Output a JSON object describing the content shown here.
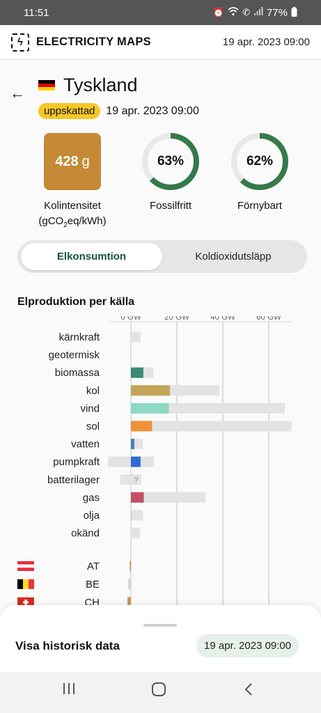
{
  "status_bar": {
    "time": "11:51",
    "battery": "77%",
    "icons": [
      "alarm-icon",
      "wifi-icon",
      "call-icon",
      "signal-icon",
      "battery-icon"
    ]
  },
  "header": {
    "logo_icon": "lightning-icon",
    "brand": "ELECTRICITY MAPS",
    "date": "19 apr. 2023 09:00"
  },
  "country": {
    "name": "Tyskland",
    "flag": "germany-flag",
    "badge": "uppskattad",
    "date": "19 apr. 2023 09:00",
    "badge_color": "#f5c829"
  },
  "metrics": {
    "intensity_value": "428",
    "intensity_unit": "g",
    "intensity_color": "#c48a36",
    "intensity_label_1": "Kolintensitet",
    "intensity_label_2": "(gCO",
    "intensity_label_sub": "2",
    "intensity_label_3": "eq/kWh)",
    "fossil_free_value": "63%",
    "fossil_free_fraction": 0.63,
    "fossil_free_label": "Fossilfritt",
    "renewable_value": "62%",
    "renewable_fraction": 0.62,
    "renewable_label": "Förnybart",
    "ring_color": "#357a4a"
  },
  "tabs": {
    "active": "Elkonsumtion",
    "inactive": "Koldioxidutsläpp"
  },
  "section_title": "Elproduktion per källa",
  "chart_data": {
    "type": "bar",
    "title": "Elproduktion per källa",
    "xlabel": "",
    "ylabel": "",
    "x_ticks": [
      "0 GW",
      "20 GW",
      "40 GW",
      "60 GW"
    ],
    "x_tick_values": [
      0,
      20,
      40,
      60
    ],
    "xlim": [
      -10,
      70
    ],
    "grid": true,
    "categories": [
      "kärnkraft",
      "geotermisk",
      "biomassa",
      "kol",
      "vind",
      "sol",
      "vatten",
      "pumpkraft",
      "batterilager",
      "gas",
      "olja",
      "okänd"
    ],
    "series": [
      {
        "values": [
          0,
          0,
          5.4,
          17,
          16.5,
          9.2,
          1.5,
          4.2,
          0,
          5.6,
          0.3,
          0
        ],
        "colors": [
          "#cfcfcf",
          "#cfcfcf",
          "#3b8a73",
          "#c4a55a",
          "#8ed9c3",
          "#f0913a",
          "#4d7fb8",
          "#2f6bd4",
          "#cfcfcf",
          "#c25066",
          "#cfcfcf",
          "#cfcfcf"
        ]
      },
      {
        "values": [
          4.2,
          0,
          9.8,
          38.5,
          67,
          70,
          5.2,
          10,
          4.5,
          32.5,
          5.2,
          4
        ],
        "range_min": [
          0,
          0,
          0,
          0,
          0,
          0,
          0,
          -10,
          -4.6,
          0,
          0,
          0
        ]
      }
    ],
    "unknown_marker": "?",
    "exchanges": [
      {
        "code": "AT",
        "flag": "austria-flag",
        "value": -0.5,
        "color": "#c49a52"
      },
      {
        "code": "BE",
        "flag": "belgium-flag",
        "value": -1.2,
        "color": "#d5d5d5"
      },
      {
        "code": "CH",
        "flag": "switzerland-flag",
        "value": -1.5,
        "color": "#c49a52"
      }
    ]
  },
  "bottom_sheet": {
    "title": "Visa historisk data",
    "date": "19 apr. 2023 09:00"
  },
  "nav": {
    "recent_icon": "recent-apps-icon",
    "home_icon": "home-icon",
    "back_icon": "back-icon"
  }
}
